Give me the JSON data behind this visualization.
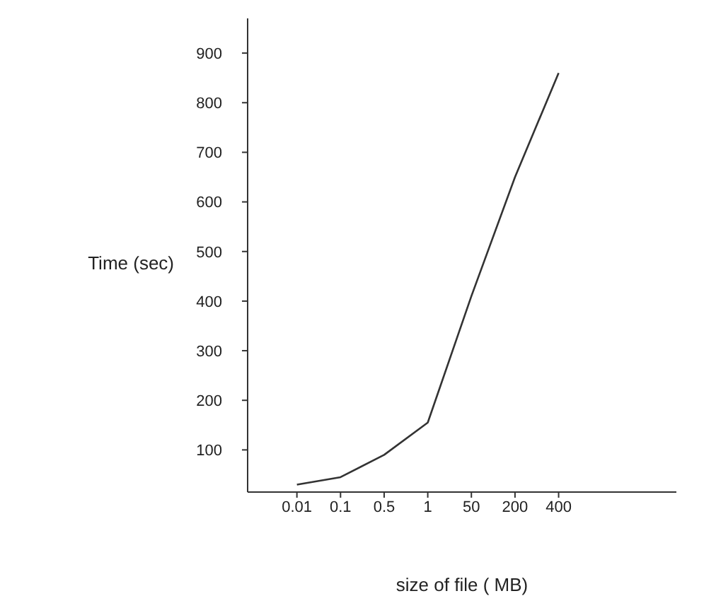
{
  "chart_data": {
    "type": "line",
    "xlabel": "size of file ( MB)",
    "ylabel": "Time (sec)",
    "categories": [
      "0.01",
      "0.1",
      "0.5",
      "1",
      "50",
      "200",
      "400"
    ],
    "series": [
      {
        "color": "#333333",
        "values": [
          30,
          45,
          90,
          155,
          410,
          650,
          860
        ]
      }
    ],
    "ylim": [
      15,
      970
    ],
    "yticks": [
      100,
      200,
      300,
      400,
      500,
      600,
      700,
      800,
      900
    ],
    "grid": false,
    "legend": false,
    "marker": "none",
    "line_style": "solid"
  }
}
